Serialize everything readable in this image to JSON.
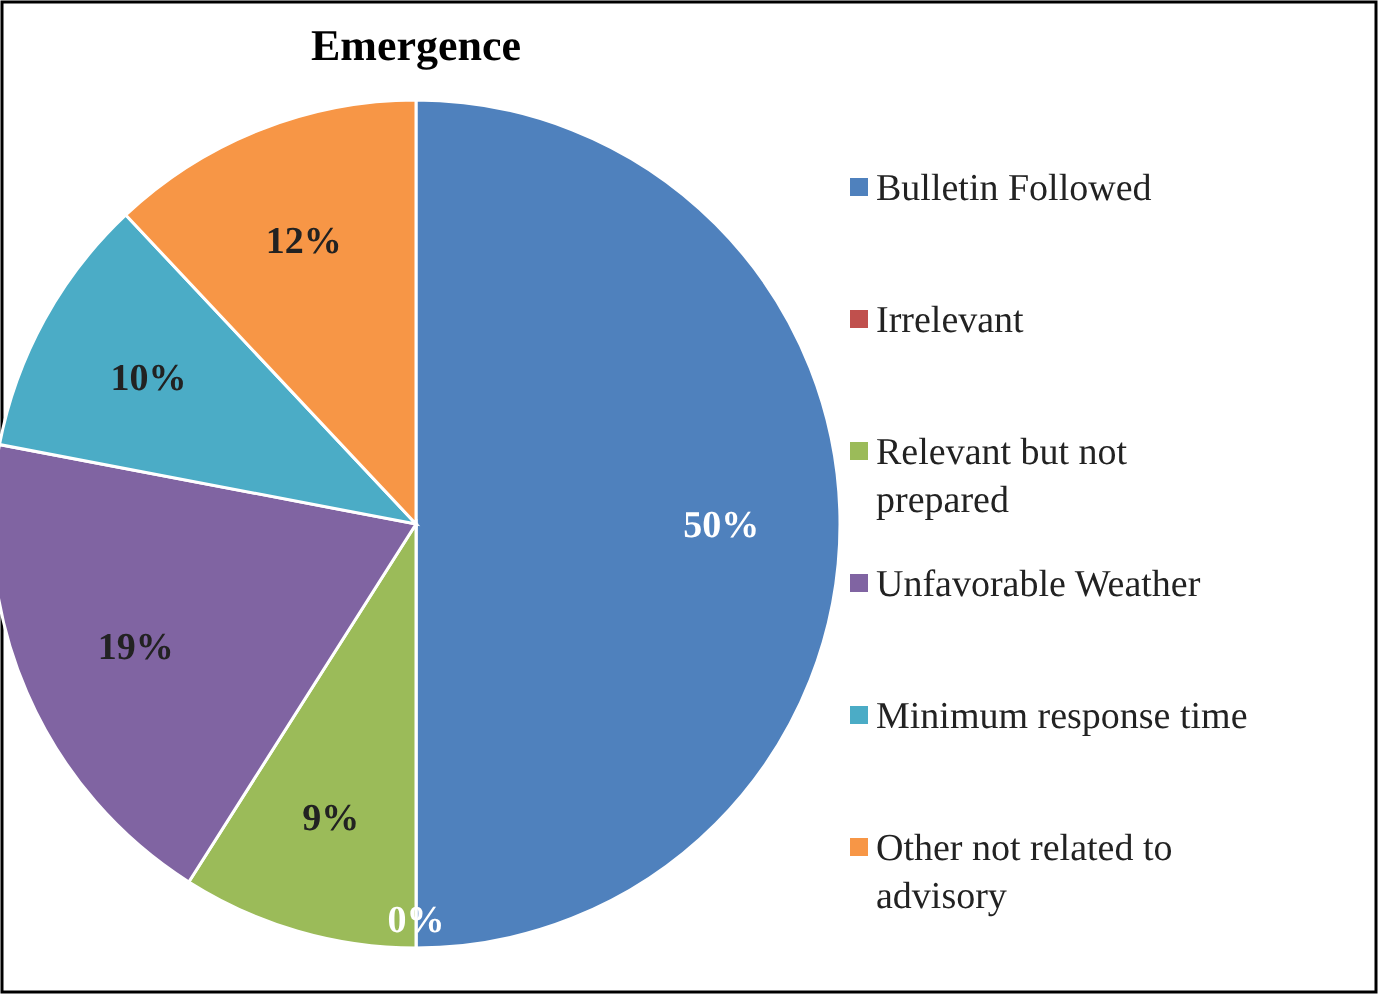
{
  "chart_data": {
    "type": "pie",
    "title": "Emergence",
    "categories": [
      "Bulletin Followed",
      "Irrelevant",
      "Relevant but not prepared",
      "Unfavorable Weather",
      "Minimum response time",
      "Other not related to advisory"
    ],
    "values": [
      50,
      0,
      9,
      19,
      10,
      12
    ],
    "colors": [
      "#4f81bd",
      "#c0504d",
      "#9bbb59",
      "#8064a2",
      "#4bacc6",
      "#f79646"
    ],
    "value_labels": [
      "50%",
      "0%",
      "9%",
      "19%",
      "10%",
      "12%"
    ],
    "legend": "right"
  }
}
